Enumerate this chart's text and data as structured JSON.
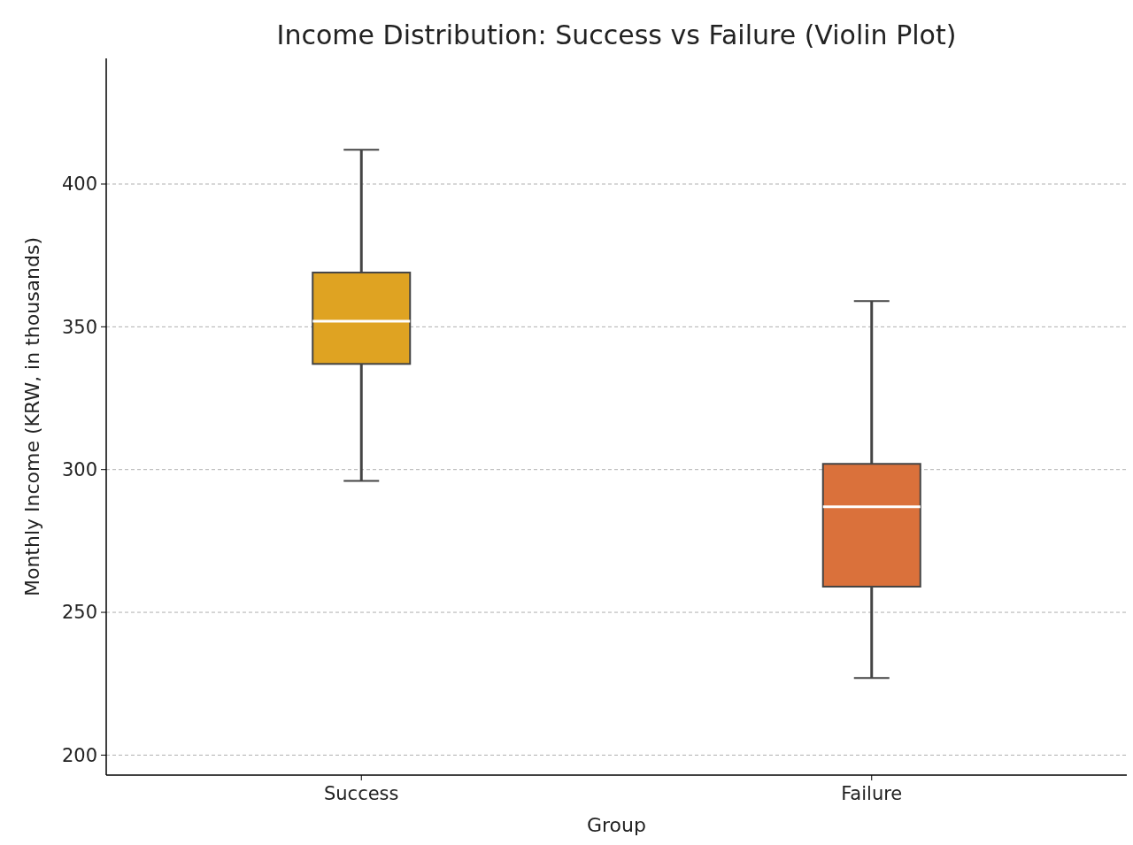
{
  "chart_data": {
    "type": "box",
    "title": "Income Distribution: Success vs Failure (Violin Plot)",
    "xlabel": "Group",
    "ylabel": "Monthly Income (KRW, in thousands)",
    "categories": [
      "Success",
      "Failure"
    ],
    "colors": [
      "#dfa322",
      "#da713b"
    ],
    "boxes": [
      {
        "low": 296,
        "q1": 337,
        "median": 352,
        "q3": 369,
        "high": 412
      },
      {
        "low": 227,
        "q1": 259,
        "median": 287,
        "q3": 302,
        "high": 359
      }
    ],
    "ylim": [
      193,
      444
    ],
    "yticks": [
      200,
      250,
      300,
      350,
      400
    ],
    "grid": "y"
  }
}
